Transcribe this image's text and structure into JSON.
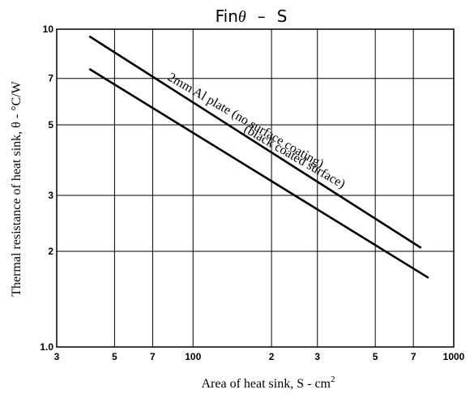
{
  "chart_data": {
    "type": "line",
    "title_text": "Fin",
    "title_symbol": "θ",
    "title_dash": "–",
    "title_var": "S",
    "xlabel": "Area of heat sink, S - cm",
    "xlabel_sup": "2",
    "ylabel": "Thermal resistance of heat sink, θ - °C/W",
    "x_scale": "log",
    "y_scale": "log",
    "xlim": [
      30,
      1000
    ],
    "ylim": [
      1.0,
      10
    ],
    "grid": true,
    "x_ticks": [
      {
        "value": 30,
        "label": "3"
      },
      {
        "value": 50,
        "label": "5"
      },
      {
        "value": 70,
        "label": "7"
      },
      {
        "value": 100,
        "label": "100"
      },
      {
        "value": 200,
        "label": "2"
      },
      {
        "value": 300,
        "label": "3"
      },
      {
        "value": 500,
        "label": "5"
      },
      {
        "value": 700,
        "label": "7"
      },
      {
        "value": 1000,
        "label": "1000"
      }
    ],
    "y_ticks": [
      {
        "value": 1.0,
        "label": "1.0"
      },
      {
        "value": 2,
        "label": "2"
      },
      {
        "value": 3,
        "label": "3"
      },
      {
        "value": 5,
        "label": "5"
      },
      {
        "value": 7,
        "label": "7"
      },
      {
        "value": 10,
        "label": "10"
      }
    ],
    "series": [
      {
        "name": "2mm Al plate (no surface coating)",
        "x": [
          40,
          750
        ],
        "y": [
          9.5,
          2.05
        ]
      },
      {
        "name": "(black coated surface)",
        "x": [
          40,
          800
        ],
        "y": [
          7.5,
          1.65
        ]
      }
    ]
  }
}
